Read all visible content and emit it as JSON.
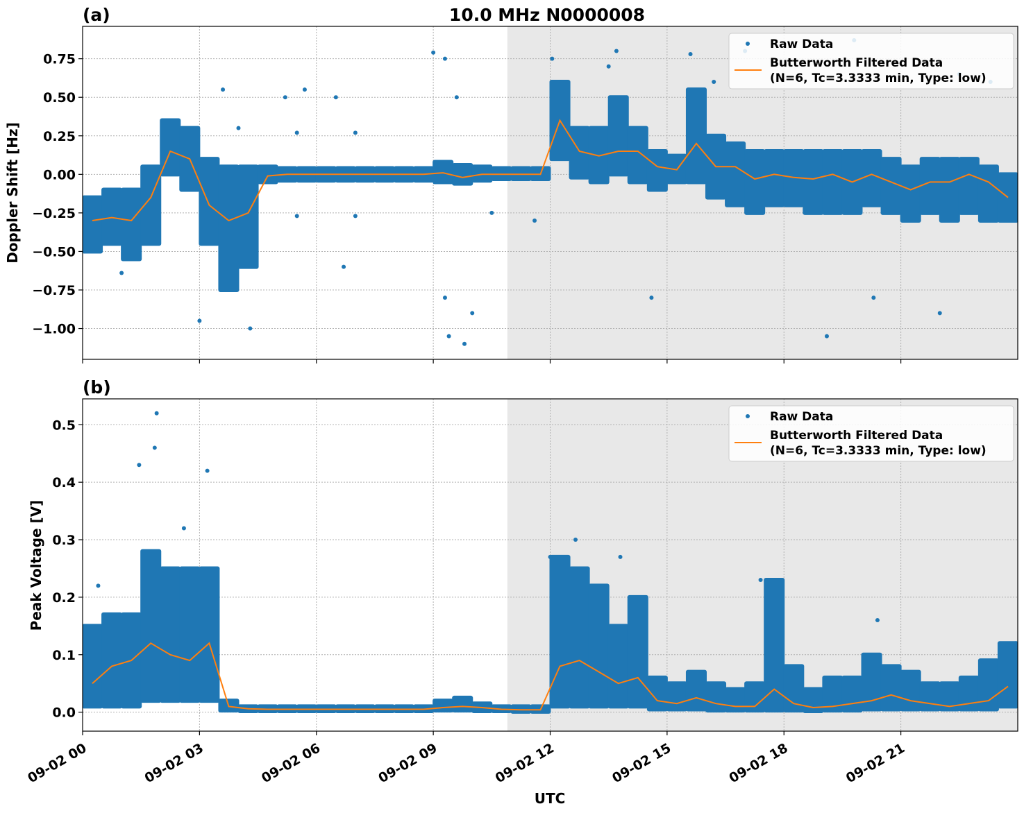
{
  "title": "10.0 MHz N0000008",
  "xlabel": "UTC",
  "x_tick_labels": [
    "09-02 00",
    "09-02 03",
    "09-02 06",
    "09-02 09",
    "09-02 12",
    "09-02 15",
    "09-02 18",
    "09-02 21"
  ],
  "x_ticks_hours": [
    0,
    3,
    6,
    9,
    12,
    15,
    18,
    21
  ],
  "x_range_hours": [
    0,
    24
  ],
  "shaded_region_hours": [
    10.9,
    24
  ],
  "colors": {
    "raw": "#1f77b4",
    "filtered": "#ff7f0e",
    "shade": "#e8e8e8",
    "grid": "#b0b0b0"
  },
  "legend": {
    "raw": "Raw Data",
    "filtered_line1": "Butterworth Filtered Data",
    "filtered_line2": "(N=6, Tc=3.3333 min, Type: low)",
    "placement": "top-right"
  },
  "chart_data": [
    {
      "type": "scatter",
      "panel_label": "(a)",
      "ylabel": "Doppler Shift [Hz]",
      "ylim": [
        -1.2,
        0.96
      ],
      "y_ticks": [
        0.75,
        0.5,
        0.25,
        0,
        -0.25,
        -0.5,
        -0.75,
        -1.0
      ],
      "y_tick_labels": [
        "0.75",
        "0.50",
        "0.25",
        "0.00",
        "−0.25",
        "−0.50",
        "−0.75",
        "−1.00"
      ],
      "grid": true,
      "x_hours": [
        0,
        0.5,
        1,
        1.5,
        2,
        2.5,
        3,
        3.5,
        4,
        4.5,
        5,
        5.5,
        6,
        6.5,
        7,
        7.5,
        8,
        8.5,
        9,
        9.5,
        10,
        10.5,
        11,
        11.5,
        12,
        12.5,
        13,
        13.5,
        14,
        14.5,
        15,
        15.5,
        16,
        16.5,
        17,
        17.5,
        18,
        18.5,
        19,
        19.5,
        20,
        20.5,
        21,
        21.5,
        22,
        22.5,
        23,
        23.5
      ],
      "series": [
        {
          "name": "Butterworth Filtered Data",
          "values": [
            -0.3,
            -0.28,
            -0.3,
            -0.15,
            0.15,
            0.1,
            -0.2,
            -0.3,
            -0.25,
            -0.01,
            0,
            0,
            0,
            0,
            0,
            0,
            0,
            0,
            0.01,
            -0.02,
            0,
            0,
            0,
            0,
            0.35,
            0.15,
            0.12,
            0.15,
            0.15,
            0.05,
            0.03,
            0.2,
            0.05,
            0.05,
            -0.03,
            0,
            -0.02,
            -0.03,
            0,
            -0.05,
            0,
            -0.05,
            -0.1,
            -0.05,
            -0.05,
            0,
            -0.05,
            -0.15
          ]
        },
        {
          "name": "Raw Data",
          "raw_min": [
            -0.5,
            -0.45,
            -0.55,
            -0.45,
            0,
            -0.1,
            -0.45,
            -0.75,
            -0.6,
            -0.05,
            -0.04,
            -0.04,
            -0.04,
            -0.04,
            -0.04,
            -0.04,
            -0.04,
            -0.04,
            -0.05,
            -0.06,
            -0.04,
            -0.03,
            -0.03,
            -0.03,
            0.1,
            -0.02,
            -0.05,
            0,
            -0.05,
            -0.1,
            -0.05,
            -0.05,
            -0.15,
            -0.2,
            -0.25,
            -0.2,
            -0.2,
            -0.25,
            -0.25,
            -0.25,
            -0.2,
            -0.25,
            -0.3,
            -0.25,
            -0.3,
            -0.25,
            -0.3,
            -0.3
          ],
          "raw_max": [
            -0.15,
            -0.1,
            -0.1,
            0.05,
            0.35,
            0.3,
            0.1,
            0.05,
            0.05,
            0.05,
            0.04,
            0.04,
            0.04,
            0.04,
            0.04,
            0.04,
            0.04,
            0.04,
            0.08,
            0.06,
            0.05,
            0.04,
            0.04,
            0.04,
            0.6,
            0.3,
            0.3,
            0.5,
            0.3,
            0.15,
            0.12,
            0.55,
            0.25,
            0.2,
            0.15,
            0.15,
            0.15,
            0.15,
            0.15,
            0.15,
            0.15,
            0.1,
            0.05,
            0.1,
            0.1,
            0.1,
            0.05,
            0
          ],
          "outliers": [
            [
              3.0,
              -0.95
            ],
            [
              3.6,
              0.55
            ],
            [
              4.3,
              -1.0
            ],
            [
              5.2,
              0.5
            ],
            [
              5.7,
              0.55
            ],
            [
              6.5,
              0.5
            ],
            [
              6.7,
              -0.6
            ],
            [
              9.0,
              0.79
            ],
            [
              9.3,
              0.75
            ],
            [
              9.4,
              -1.05
            ],
            [
              9.8,
              -1.1
            ],
            [
              10.0,
              -0.9
            ],
            [
              9.6,
              0.5
            ],
            [
              9.3,
              -0.8
            ],
            [
              12.05,
              0.75
            ],
            [
              13.7,
              0.8
            ],
            [
              13.5,
              0.7
            ],
            [
              15.6,
              0.78
            ],
            [
              16.2,
              0.6
            ],
            [
              17.0,
              0.8
            ],
            [
              14.6,
              -0.8
            ],
            [
              19.1,
              -1.05
            ],
            [
              20.3,
              -0.8
            ],
            [
              22.0,
              -0.9
            ],
            [
              19.8,
              0.87
            ],
            [
              22.5,
              0.65
            ],
            [
              23.3,
              0.6
            ],
            [
              4.0,
              0.3
            ],
            [
              5.5,
              0.27
            ],
            [
              7.0,
              0.27
            ],
            [
              5.5,
              -0.27
            ],
            [
              7.0,
              -0.27
            ],
            [
              1.0,
              -0.64
            ],
            [
              10.5,
              -0.25
            ],
            [
              11.6,
              -0.3
            ]
          ]
        }
      ]
    },
    {
      "type": "scatter",
      "panel_label": "(b)",
      "ylabel": "Peak Voltage [V]",
      "ylim": [
        -0.033,
        0.545
      ],
      "y_ticks": [
        0,
        0.1,
        0.2,
        0.3,
        0.4,
        0.5
      ],
      "y_tick_labels": [
        "0.0",
        "0.1",
        "0.2",
        "0.3",
        "0.4",
        "0.5"
      ],
      "grid": true,
      "x_hours": [
        0,
        0.5,
        1,
        1.5,
        2,
        2.5,
        3,
        3.5,
        4,
        4.5,
        5,
        5.5,
        6,
        6.5,
        7,
        7.5,
        8,
        8.5,
        9,
        9.5,
        10,
        10.5,
        11,
        11.5,
        12,
        12.5,
        13,
        13.5,
        14,
        14.5,
        15,
        15.5,
        16,
        16.5,
        17,
        17.5,
        18,
        18.5,
        19,
        19.5,
        20,
        20.5,
        21,
        21.5,
        22,
        22.5,
        23,
        23.5
      ],
      "series": [
        {
          "name": "Butterworth Filtered Data",
          "values": [
            0.05,
            0.08,
            0.09,
            0.12,
            0.1,
            0.09,
            0.12,
            0.01,
            0.006,
            0.005,
            0.005,
            0.005,
            0.005,
            0.005,
            0.005,
            0.005,
            0.005,
            0.005,
            0.008,
            0.01,
            0.008,
            0.005,
            0.004,
            0.004,
            0.08,
            0.09,
            0.07,
            0.05,
            0.06,
            0.02,
            0.015,
            0.025,
            0.015,
            0.01,
            0.01,
            0.04,
            0.015,
            0.008,
            0.01,
            0.015,
            0.02,
            0.03,
            0.02,
            0.015,
            0.01,
            0.015,
            0.02,
            0.045
          ]
        },
        {
          "name": "Raw Data",
          "raw_min": [
            0.01,
            0.01,
            0.01,
            0.02,
            0.02,
            0.02,
            0.02,
            0.003,
            0.002,
            0.002,
            0.002,
            0.002,
            0.002,
            0.002,
            0.002,
            0.002,
            0.002,
            0.002,
            0.003,
            0.003,
            0.002,
            0.002,
            0.001,
            0.001,
            0.01,
            0.01,
            0.01,
            0.01,
            0.01,
            0.005,
            0.005,
            0.005,
            0.003,
            0.003,
            0.003,
            0.003,
            0.003,
            0.002,
            0.003,
            0.003,
            0.005,
            0.005,
            0.005,
            0.005,
            0.005,
            0.005,
            0.005,
            0.01
          ],
          "raw_max": [
            0.15,
            0.17,
            0.17,
            0.28,
            0.25,
            0.25,
            0.25,
            0.02,
            0.01,
            0.01,
            0.01,
            0.01,
            0.01,
            0.01,
            0.01,
            0.01,
            0.01,
            0.01,
            0.02,
            0.025,
            0.015,
            0.01,
            0.01,
            0.01,
            0.27,
            0.25,
            0.22,
            0.15,
            0.2,
            0.06,
            0.05,
            0.07,
            0.05,
            0.04,
            0.05,
            0.23,
            0.08,
            0.04,
            0.06,
            0.06,
            0.1,
            0.08,
            0.07,
            0.05,
            0.05,
            0.06,
            0.09,
            0.12
          ],
          "outliers": [
            [
              0.4,
              0.22
            ],
            [
              1.45,
              0.43
            ],
            [
              1.9,
              0.52
            ],
            [
              1.85,
              0.46
            ],
            [
              2.6,
              0.32
            ],
            [
              3.2,
              0.42
            ],
            [
              12.65,
              0.3
            ],
            [
              13.8,
              0.27
            ],
            [
              17.4,
              0.23
            ],
            [
              20.4,
              0.16
            ],
            [
              23.95,
              0.12
            ],
            [
              12.0,
              0.27
            ]
          ]
        }
      ]
    }
  ]
}
